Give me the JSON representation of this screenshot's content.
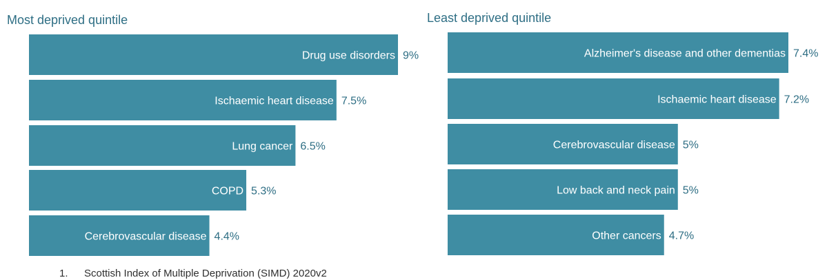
{
  "chart_data": [
    {
      "type": "bar",
      "orientation": "horizontal",
      "title": "Most deprived quintile",
      "categories": [
        "Drug use disorders",
        "Ischaemic heart disease",
        "Lung cancer",
        "COPD",
        "Cerebrovascular disease"
      ],
      "values": [
        9,
        7.5,
        6.5,
        5.3,
        4.4
      ],
      "value_labels": [
        "9%",
        "7.5%",
        "6.5%",
        "5.3%",
        "4.4%"
      ],
      "unit": "%",
      "color": "#3f8da3"
    },
    {
      "type": "bar",
      "orientation": "horizontal",
      "title": "Least deprived quintile",
      "categories": [
        "Alzheimer's disease and other dementias",
        "Ischaemic heart disease",
        "Cerebrovascular disease",
        "Low back and neck pain",
        "Other cancers"
      ],
      "values": [
        7.4,
        7.2,
        5,
        5,
        4.7
      ],
      "value_labels": [
        "7.4%",
        "7.2%",
        "5%",
        "5%",
        "4.7%"
      ],
      "unit": "%",
      "color": "#3f8da3"
    }
  ],
  "footnote": {
    "number": "1.",
    "text": "Scottish Index of Multiple Deprivation (SIMD) 2020v2"
  },
  "colors": {
    "bar": "#3f8da3",
    "title": "#2e6e84",
    "value_text": "#2e6e84"
  }
}
